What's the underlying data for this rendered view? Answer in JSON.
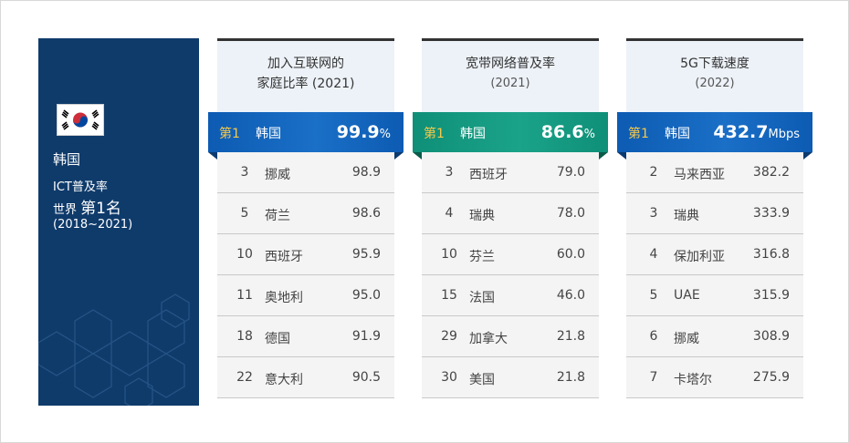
{
  "sidebar": {
    "country": "韩国",
    "line1": "ICT普及率",
    "line2_prefix": "世界",
    "line2_big": "第1名",
    "line3": "(2018~2021)"
  },
  "panels": [
    {
      "title": "加入互联网的",
      "title2": "家庭比率 (2021)",
      "top": {
        "rank": "第1",
        "country": "韩国",
        "value": "99.9",
        "unit": "%"
      },
      "rows": [
        {
          "rank": "3",
          "country": "挪威",
          "value": "98.9"
        },
        {
          "rank": "5",
          "country": "荷兰",
          "value": "98.6"
        },
        {
          "rank": "10",
          "country": "西班牙",
          "value": "95.9"
        },
        {
          "rank": "11",
          "country": "奥地利",
          "value": "95.0"
        },
        {
          "rank": "18",
          "country": "德国",
          "value": "91.9"
        },
        {
          "rank": "22",
          "country": "意大利",
          "value": "90.5"
        }
      ]
    },
    {
      "title": "宽带网络普及率",
      "title2": "(2021)",
      "top": {
        "rank": "第1",
        "country": "韩国",
        "value": "86.6",
        "unit": "%"
      },
      "rows": [
        {
          "rank": "3",
          "country": "西班牙",
          "value": "79.0"
        },
        {
          "rank": "4",
          "country": "瑞典",
          "value": "78.0"
        },
        {
          "rank": "10",
          "country": "芬兰",
          "value": "60.0"
        },
        {
          "rank": "15",
          "country": "法国",
          "value": "46.0"
        },
        {
          "rank": "29",
          "country": "加拿大",
          "value": "21.8"
        },
        {
          "rank": "30",
          "country": "美国",
          "value": "21.8"
        }
      ]
    },
    {
      "title": "5G下载速度",
      "title2": "(2022)",
      "top": {
        "rank": "第1",
        "country": "韩国",
        "value": "432.7",
        "unit": "Mbps"
      },
      "rows": [
        {
          "rank": "2",
          "country": "马来西亚",
          "value": "382.2"
        },
        {
          "rank": "3",
          "country": "瑞典",
          "value": "333.9"
        },
        {
          "rank": "4",
          "country": "保加利亚",
          "value": "316.8"
        },
        {
          "rank": "5",
          "country": "UAE",
          "value": "315.9"
        },
        {
          "rank": "6",
          "country": "挪威",
          "value": "308.9"
        },
        {
          "rank": "7",
          "country": "卡塔尔",
          "value": "275.9"
        }
      ]
    }
  ],
  "colors": {
    "sidebar": "#0f3b6b",
    "blue_bar": "#1565c0",
    "green_bar": "#129a80",
    "rank_gold": "#f7c948"
  }
}
